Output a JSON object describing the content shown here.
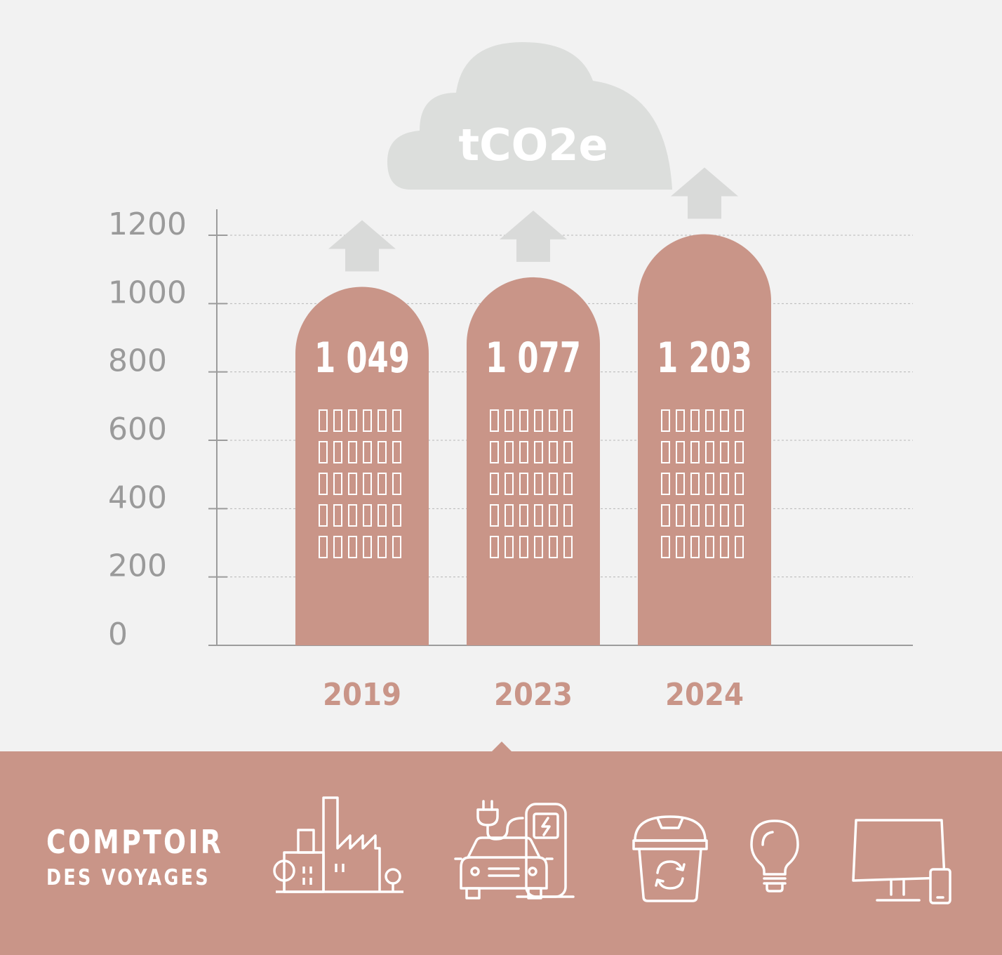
{
  "chart_data": {
    "type": "bar",
    "title": "tCO2e",
    "categories": [
      "2019",
      "2023",
      "2024"
    ],
    "values": [
      1049,
      1077,
      1203
    ],
    "value_labels": [
      "1 049",
      "1 077",
      "1 203"
    ],
    "ylim": [
      0,
      1200
    ],
    "yticks": [
      0,
      200,
      400,
      600,
      800,
      1000,
      1200
    ],
    "ytick_labels": [
      "0",
      "200",
      "400",
      "600",
      "800",
      "1000",
      "1200"
    ],
    "xlabel": "",
    "ylabel": "",
    "grid": true,
    "legend": "none"
  },
  "colors": {
    "background": "#f2f2f2",
    "bar": "#c99588",
    "axis": "#9c9c9c",
    "tick_text": "#9a9a9a",
    "cloud": "#dcdedc",
    "arrow": "#d9dad9",
    "year_text": "#c99588",
    "footer": "#c99588",
    "white": "#ffffff"
  },
  "footer": {
    "brand_line1": "COMPTOIR",
    "brand_line2": "DES VOYAGES",
    "icons": [
      "factory-icon",
      "electric-car-charging-icon",
      "recycling-bin-icon",
      "light-bulb-icon",
      "computer-and-phone-icon"
    ]
  }
}
